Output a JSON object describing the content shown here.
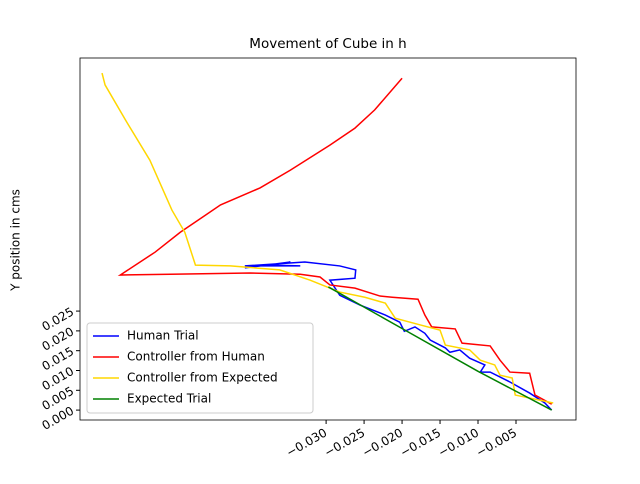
{
  "chart_data": {
    "type": "line",
    "title": "Movement of Cube in h",
    "y_label": "Y position in cms",
    "xlim": [
      -0.0624,
      0.0029
    ],
    "ylim": [
      -0.0025,
      0.0889
    ],
    "xticks": [
      {
        "value": -0.03,
        "label": "−0.030"
      },
      {
        "value": -0.025,
        "label": "−0.025"
      },
      {
        "value": -0.02,
        "label": "−0.020"
      },
      {
        "value": -0.015,
        "label": "−0.015"
      },
      {
        "value": -0.01,
        "label": "−0.010"
      },
      {
        "value": -0.005,
        "label": "−0.005"
      }
    ],
    "yticks": [
      {
        "value": 0,
        "label": "0.000"
      },
      {
        "value": 0.005,
        "label": "0.005"
      },
      {
        "value": 0.01,
        "label": "0.010"
      },
      {
        "value": 0.015,
        "label": "0.015"
      },
      {
        "value": 0.02,
        "label": "0.020"
      },
      {
        "value": 0.025,
        "label": "0.025"
      }
    ],
    "legend": "lower left",
    "series": [
      {
        "name": "Human Trial",
        "color": "#0000ff",
        "x": [
          -0.0407,
          -0.0347,
          -0.0374,
          -0.0334,
          -0.0407,
          -0.0328,
          -0.0282,
          -0.0261,
          -0.0262,
          -0.0295,
          -0.0282,
          -0.0255,
          -0.0222,
          -0.0203,
          -0.0197,
          -0.0183,
          -0.017,
          -0.0163,
          -0.0143,
          -0.0137,
          -0.0124,
          -0.0111,
          -0.0091,
          -0.0097,
          -0.0084,
          -0.0058,
          -0.0032,
          -0.0012,
          -0.0003
        ],
        "values": [
          0.0359,
          0.0374,
          0.0366,
          0.0364,
          0.0364,
          0.0374,
          0.0364,
          0.0354,
          0.0333,
          0.0328,
          0.029,
          0.0265,
          0.024,
          0.0222,
          0.0199,
          0.021,
          0.0194,
          0.0177,
          0.0157,
          0.0146,
          0.0152,
          0.0131,
          0.0114,
          0.0096,
          0.0096,
          0.0071,
          0.0043,
          0.0018,
          0.0
        ]
      },
      {
        "name": "Controller from Human",
        "color": "#ff0000",
        "x": [
          -0.02,
          -0.0236,
          -0.0262,
          -0.0295,
          -0.0347,
          -0.0387,
          -0.0439,
          -0.0459,
          -0.0492,
          -0.0525,
          -0.0571,
          -0.0505,
          -0.04,
          -0.0334,
          -0.0308,
          -0.0295,
          -0.0262,
          -0.0229,
          -0.0213,
          -0.0179,
          -0.017,
          -0.0161,
          -0.013,
          -0.0121,
          -0.0084,
          -0.0071,
          -0.0058,
          -0.0032,
          -0.0025,
          -0.0003
        ],
        "values": [
          0.0838,
          0.0758,
          0.0712,
          0.0669,
          0.0606,
          0.0561,
          0.0518,
          0.0492,
          0.0449,
          0.0399,
          0.0341,
          0.0343,
          0.0346,
          0.0343,
          0.0336,
          0.0316,
          0.0308,
          0.0288,
          0.0285,
          0.028,
          0.024,
          0.021,
          0.0205,
          0.0169,
          0.0162,
          0.0126,
          0.0096,
          0.0093,
          0.0038,
          0.0015
        ]
      },
      {
        "name": "Controller from Expected",
        "color": "#ffd700",
        "x": [
          -0.0595,
          -0.0591,
          -0.0564,
          -0.0532,
          -0.0503,
          -0.0486,
          -0.0472,
          -0.0426,
          -0.0361,
          -0.0321,
          -0.0282,
          -0.0249,
          -0.0222,
          -0.0209,
          -0.0176,
          -0.015,
          -0.0143,
          -0.0111,
          -0.0097,
          -0.0078,
          -0.0071,
          -0.0055,
          -0.0051,
          -0.0001
        ],
        "values": [
          0.0851,
          0.0821,
          0.0732,
          0.0631,
          0.0505,
          0.0449,
          0.0366,
          0.0364,
          0.0354,
          0.0328,
          0.0298,
          0.0285,
          0.027,
          0.0232,
          0.0215,
          0.0202,
          0.0164,
          0.0152,
          0.0126,
          0.0114,
          0.0088,
          0.0081,
          0.0038,
          0.0018
        ]
      },
      {
        "name": "Expected Trial",
        "color": "#008000",
        "x": [
          -0.0297,
          -0.02,
          -0.01,
          -0.0003
        ],
        "values": [
          0.0311,
          0.0206,
          0.0098,
          0.0
        ]
      }
    ]
  }
}
